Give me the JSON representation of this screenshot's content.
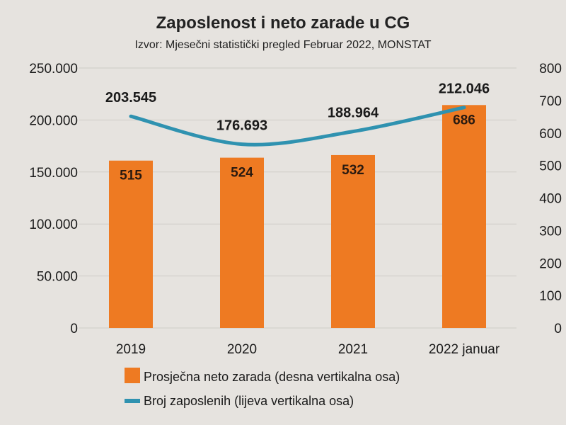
{
  "chart_data": {
    "type": "bar",
    "title": "Zaposlenost i neto zarade u CG",
    "subtitle": "Izvor: Mjesečni statistički pregled Februar 2022, MONSTAT",
    "categories": [
      "2019",
      "2020",
      "2021",
      "2022 januar"
    ],
    "series": [
      {
        "name": "Prosječna neto zarada (desna vertikalna osa)",
        "type": "bar",
        "axis": "right",
        "values": [
          515,
          524,
          532,
          686
        ],
        "labels": [
          "515",
          "524",
          "532",
          "686"
        ]
      },
      {
        "name": "Broj zaposlenih (lijeva vertikalna osa)",
        "type": "line",
        "axis": "left",
        "values": [
          203545,
          176693,
          188964,
          212046
        ],
        "labels": [
          "203.545",
          "176.693",
          "188.964",
          "212.046"
        ]
      }
    ],
    "left_axis": {
      "min": 0,
      "max": 250000,
      "ticks": [
        0,
        50000,
        100000,
        150000,
        200000,
        250000
      ],
      "tick_labels": [
        "0",
        "50.000",
        "100.000",
        "150.000",
        "200.000",
        "250.000"
      ]
    },
    "right_axis": {
      "min": 0,
      "max": 800,
      "ticks": [
        0,
        100,
        200,
        300,
        400,
        500,
        600,
        700,
        800
      ],
      "tick_labels": [
        "0",
        "100",
        "200",
        "300",
        "400",
        "500",
        "600",
        "700",
        "800"
      ]
    },
    "grid": true,
    "legend_position": "bottom",
    "colors": {
      "bar": "#ee7a22",
      "line": "#2f92b0"
    }
  }
}
